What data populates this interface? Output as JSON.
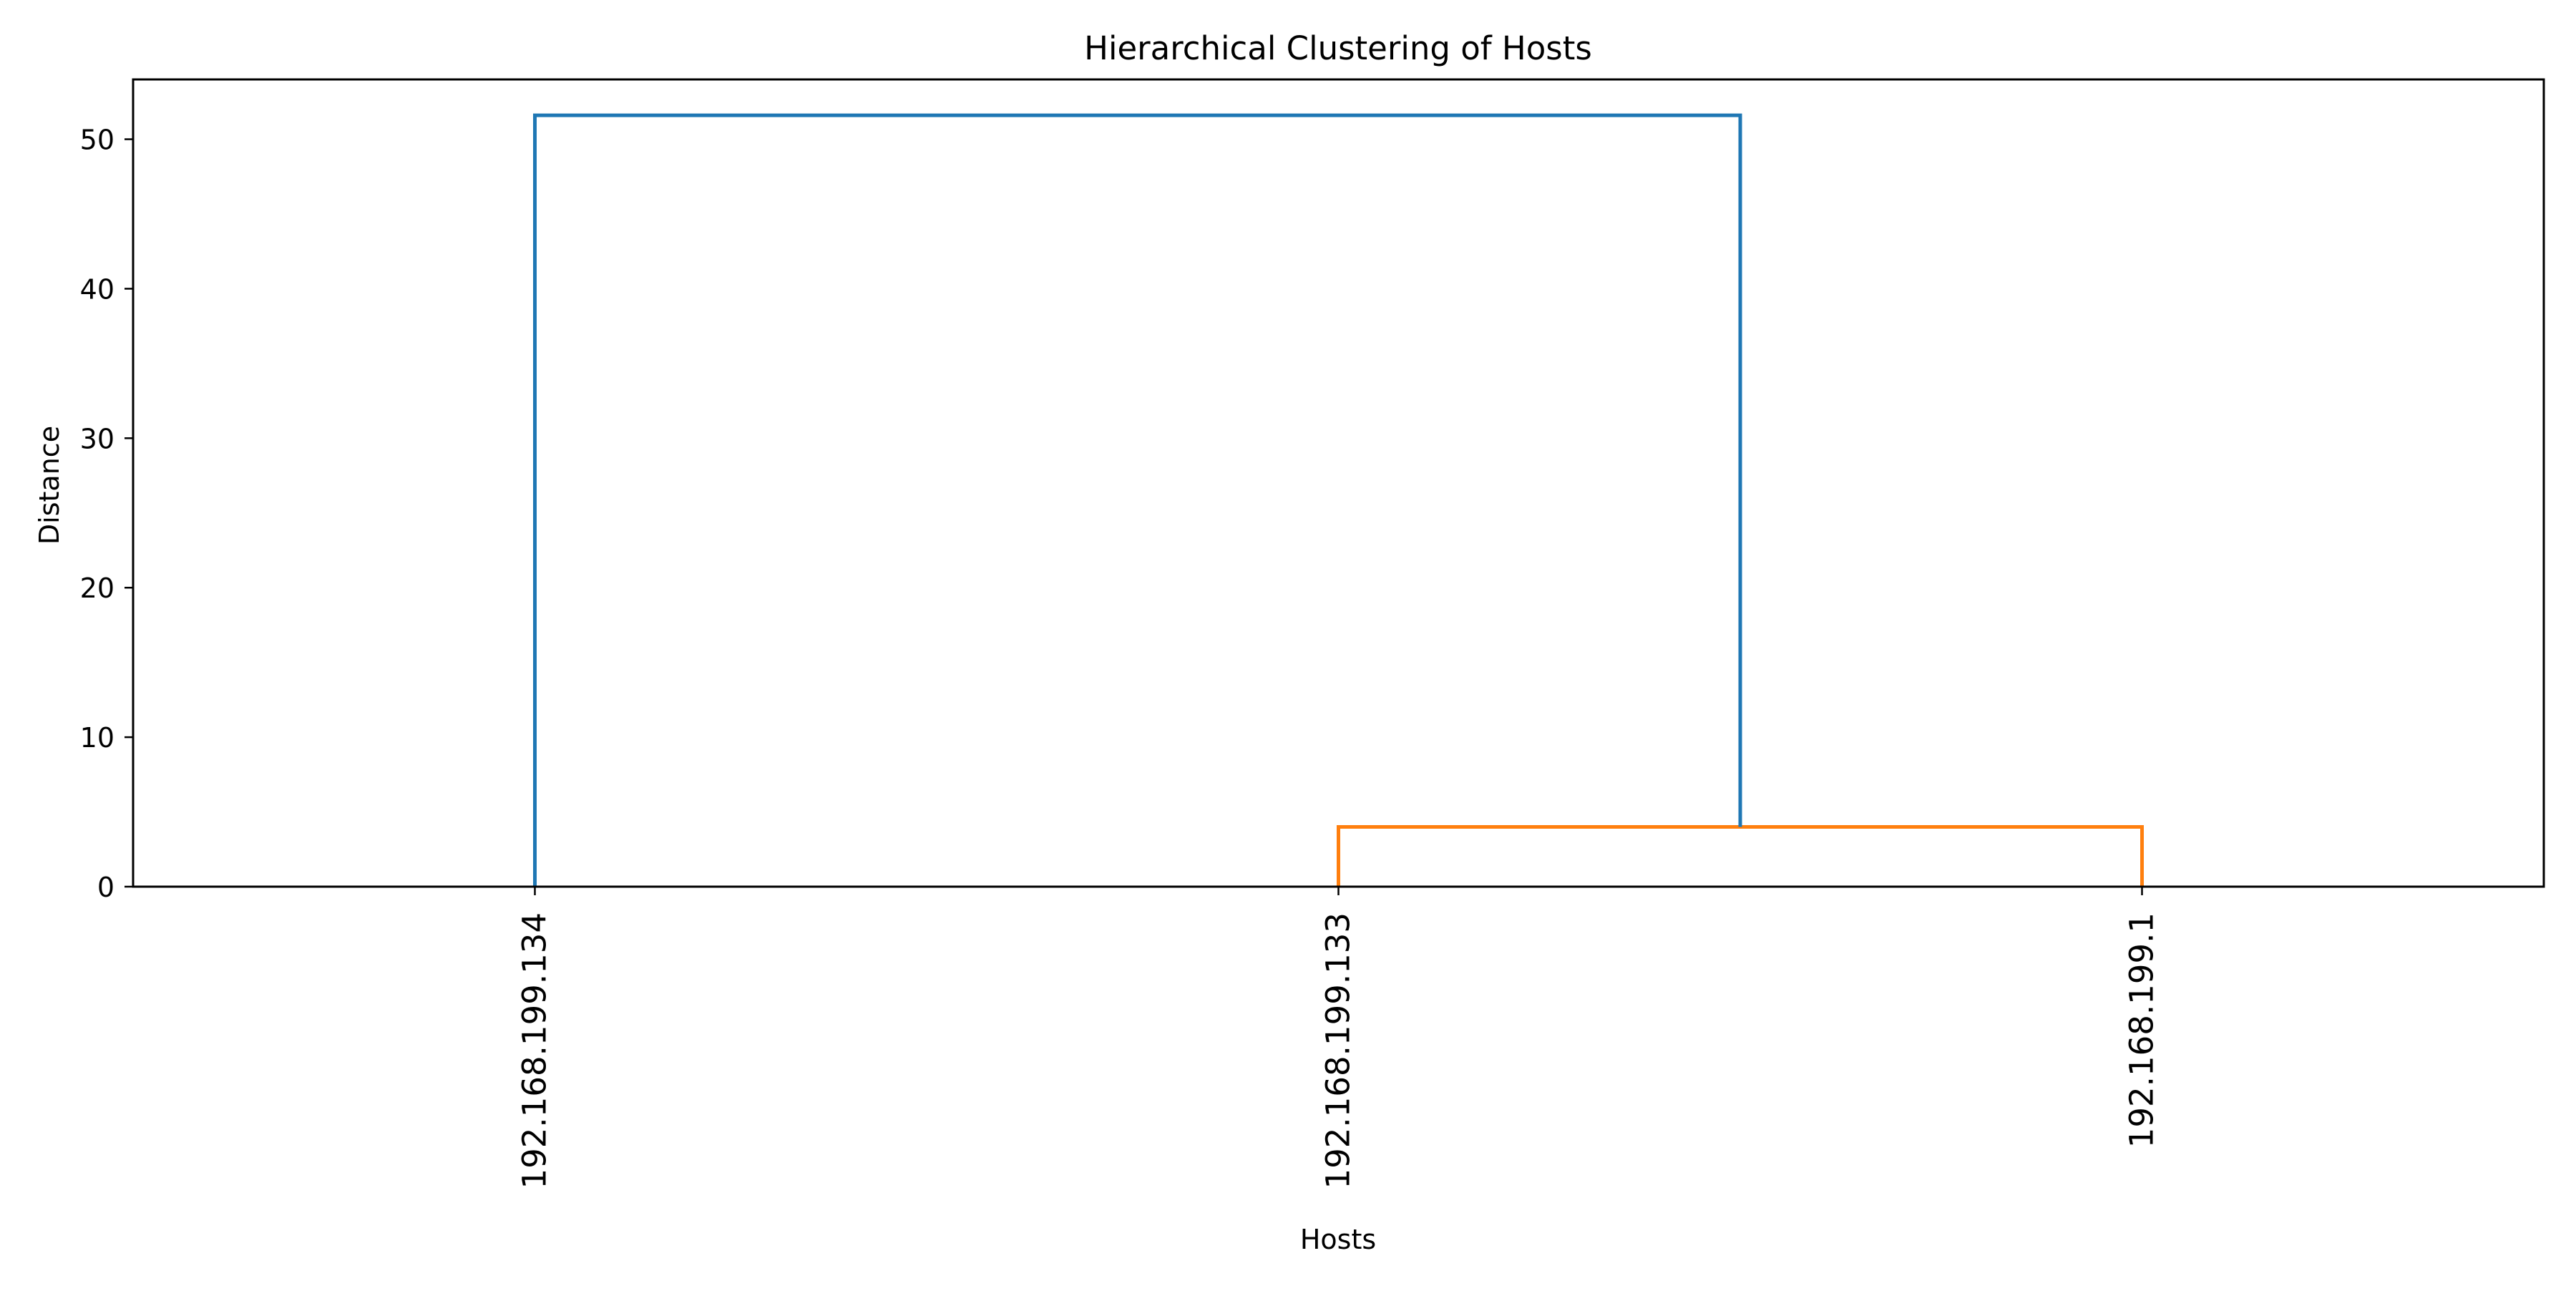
{
  "chart_data": {
    "type": "dendrogram",
    "title": "Hierarchical Clustering of Hosts",
    "xlabel": "Hosts",
    "ylabel": "Distance",
    "ylim": [
      0,
      54
    ],
    "yticks": [
      0,
      10,
      20,
      30,
      40,
      50
    ],
    "leaves": [
      "192.168.199.134",
      "192.168.199.133",
      "192.168.199.1"
    ],
    "merges": [
      {
        "left": "192.168.199.133",
        "right": "192.168.199.1",
        "height": 4.0,
        "color": "#ff7f0e"
      },
      {
        "left": "192.168.199.134",
        "right": "cluster(192.168.199.133, 192.168.199.1)",
        "height": 51.6,
        "color": "#1f77b4"
      }
    ],
    "grid": false
  }
}
